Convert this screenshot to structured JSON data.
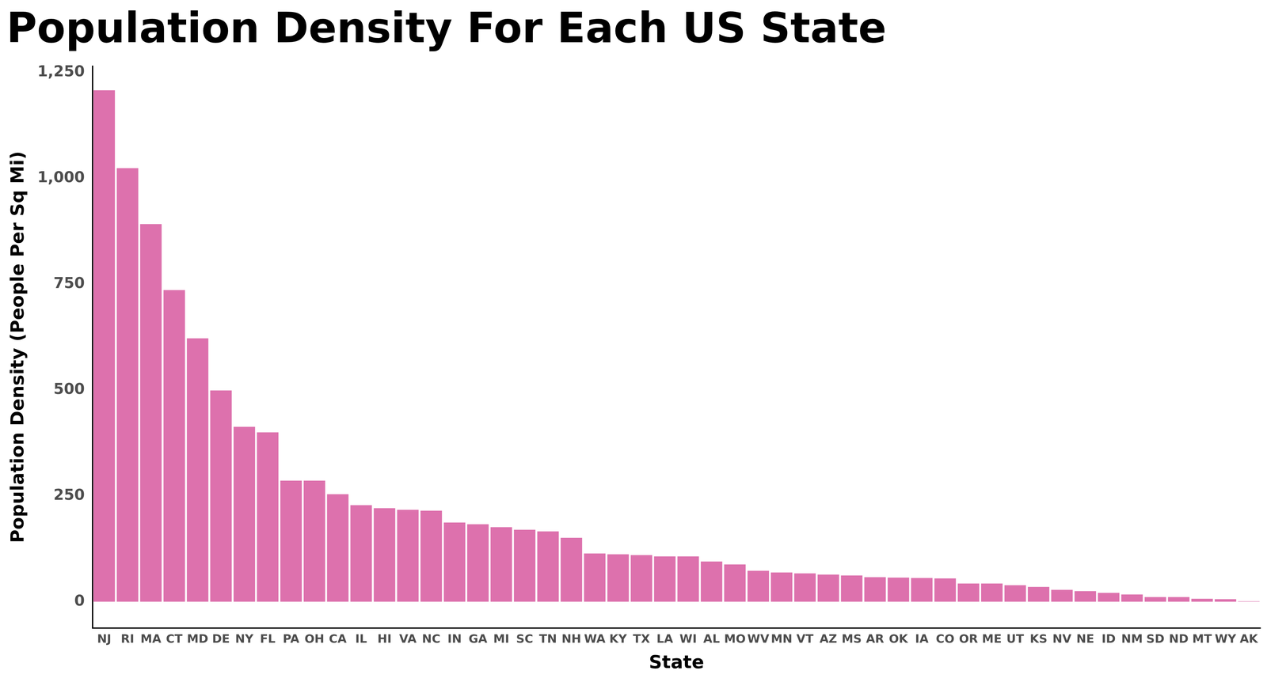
{
  "chart_data": {
    "type": "bar",
    "title": "Population Density For Each US State",
    "x_label": "State",
    "y_label": "Population Density (People Per Sq Mi)",
    "categories": [
      "NJ",
      "RI",
      "MA",
      "CT",
      "MD",
      "DE",
      "NY",
      "FL",
      "PA",
      "OH",
      "CA",
      "IL",
      "HI",
      "VA",
      "NC",
      "IN",
      "GA",
      "MI",
      "SC",
      "TN",
      "NH",
      "WA",
      "KY",
      "TX",
      "LA",
      "WI",
      "AL",
      "MO",
      "WV",
      "MN",
      "VT",
      "AZ",
      "MS",
      "AR",
      "OK",
      "IA",
      "CO",
      "OR",
      "ME",
      "UT",
      "KS",
      "NV",
      "NE",
      "ID",
      "NM",
      "SD",
      "ND",
      "MT",
      "WY",
      "AK"
    ],
    "values": [
      1208,
      1024,
      892,
      736,
      622,
      499,
      413,
      400,
      286,
      286,
      254,
      228,
      221,
      217,
      215,
      187,
      183,
      176,
      170,
      166,
      151,
      114,
      112,
      110,
      107,
      107,
      95,
      88,
      73,
      69,
      67,
      64,
      62,
      58,
      57,
      56,
      55,
      43,
      43,
      39,
      35,
      28,
      25,
      21,
      17,
      11,
      11,
      7,
      6,
      1
    ],
    "color": "#dd71ad",
    "ylim": [
      -62,
      1265
    ],
    "yticks": [
      0,
      250,
      500,
      750,
      {
        "value": 1000,
        "label": "1,000"
      },
      {
        "value": 1250,
        "label": "1,250"
      }
    ],
    "grid": false
  }
}
